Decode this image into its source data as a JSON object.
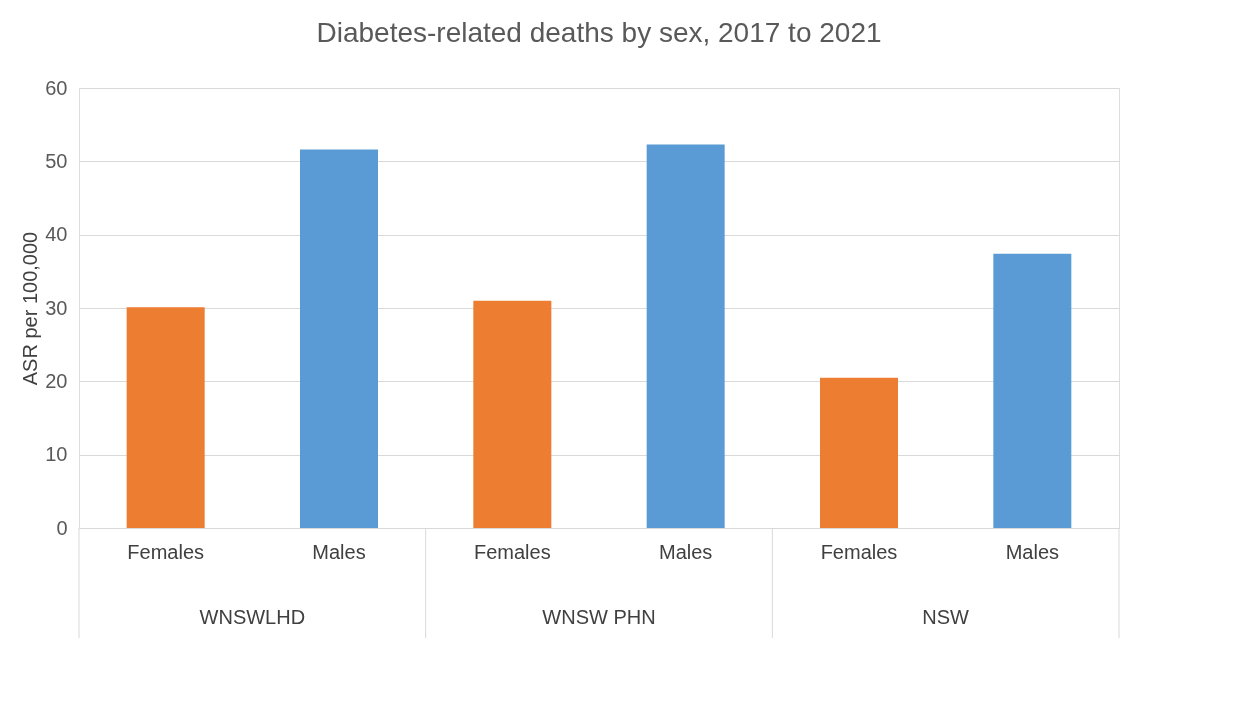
{
  "chart_data": {
    "type": "bar",
    "title": "Diabetes-related deaths by sex, 2017 to 2021",
    "ylabel": "ASR per 100,000",
    "categories": [
      "Females",
      "Males",
      "Females",
      "Males",
      "Females",
      "Males"
    ],
    "values": [
      30.1,
      51.6,
      31.0,
      52.3,
      20.5,
      37.4
    ],
    "colors": [
      "#ed7d31",
      "#5b9bd5",
      "#ed7d31",
      "#5b9bd5",
      "#ed7d31",
      "#5b9bd5"
    ],
    "annotations": [
      "WNSWLHD",
      "WNSW PHN",
      "NSW"
    ],
    "ylim": [
      0,
      60
    ],
    "yticks": [
      0,
      10,
      20,
      30,
      40,
      50,
      60
    ],
    "grid": "y"
  }
}
